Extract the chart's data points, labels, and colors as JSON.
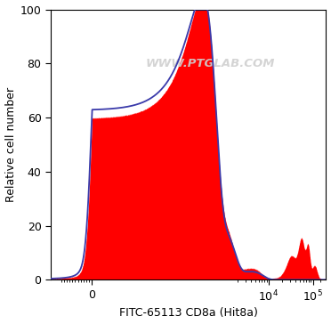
{
  "title": "WWW.PTGLAB.COM",
  "xlabel": "FITC-65113 CD8a (Hit8a)",
  "ylabel": "Relative cell number",
  "ylim": [
    0,
    100
  ],
  "yticks": [
    0,
    20,
    40,
    60,
    80,
    100
  ],
  "fill_color": "#ff0000",
  "line_color": "#3a3aaa",
  "background_color": "#ffffff",
  "watermark_color": "#d0d0d0",
  "watermark_alpha": 0.9,
  "figsize": [
    3.72,
    3.64
  ],
  "dpi": 100
}
